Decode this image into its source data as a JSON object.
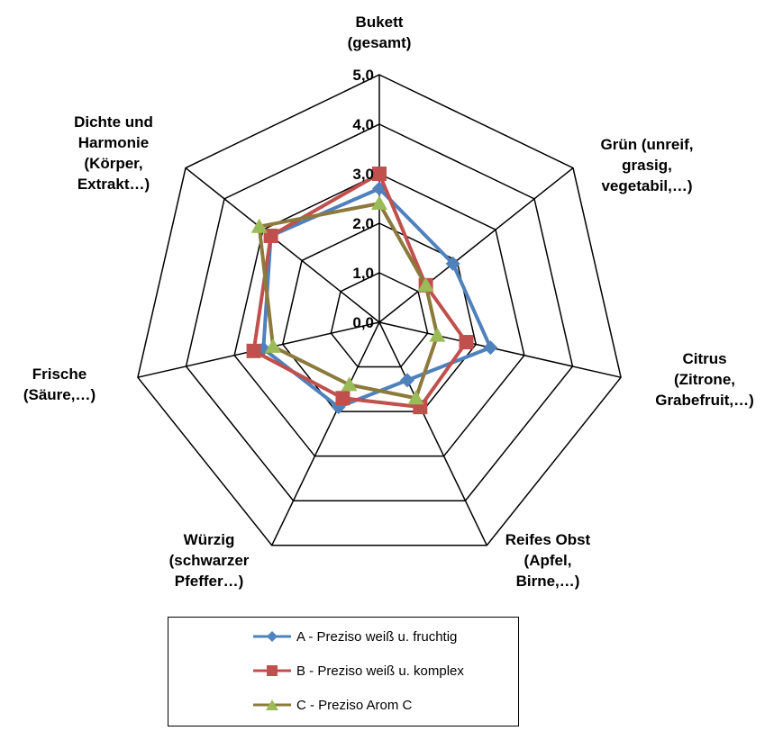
{
  "chart_data": {
    "type": "radar",
    "axes": [
      [
        "Bukett",
        "(gesamt)"
      ],
      [
        "Grün (unreif,",
        "grasig,",
        "vegetabil,…)"
      ],
      [
        "Citrus",
        "(Zitrone,",
        "Grabefruit,…)"
      ],
      [
        "Reifes Obst",
        "(Apfel,",
        "Birne,…)"
      ],
      [
        "Würzig",
        "(schwarzer",
        "Pfeffer…)"
      ],
      [
        "Frische",
        "(Säure,…)"
      ],
      [
        "Dichte und",
        "Harmonie",
        "(Körper,",
        "Extrakt…)"
      ]
    ],
    "ticks": [
      "0,0",
      "1,0",
      "2,0",
      "3,0",
      "4,0",
      "5,0"
    ],
    "rmax": 5,
    "series": [
      {
        "name": "A - Preziso weiß u. fruchtig",
        "color": "#4f81bd",
        "marker": "diamond",
        "values": [
          2.7,
          1.9,
          2.3,
          1.3,
          1.9,
          2.4,
          2.8
        ]
      },
      {
        "name": "B - Preziso weiß u. komplex",
        "color": "#c0504d",
        "marker": "square",
        "values": [
          3.0,
          1.2,
          1.8,
          1.9,
          1.7,
          2.6,
          2.8
        ]
      },
      {
        "name": "C - Preziso Arom C",
        "color": "#8c7a3c",
        "marker": "triangle",
        "values": [
          2.4,
          1.2,
          1.2,
          1.7,
          1.4,
          2.2,
          3.1
        ],
        "marker_color": "#9bbb59"
      }
    ],
    "legend_position": "bottom"
  }
}
